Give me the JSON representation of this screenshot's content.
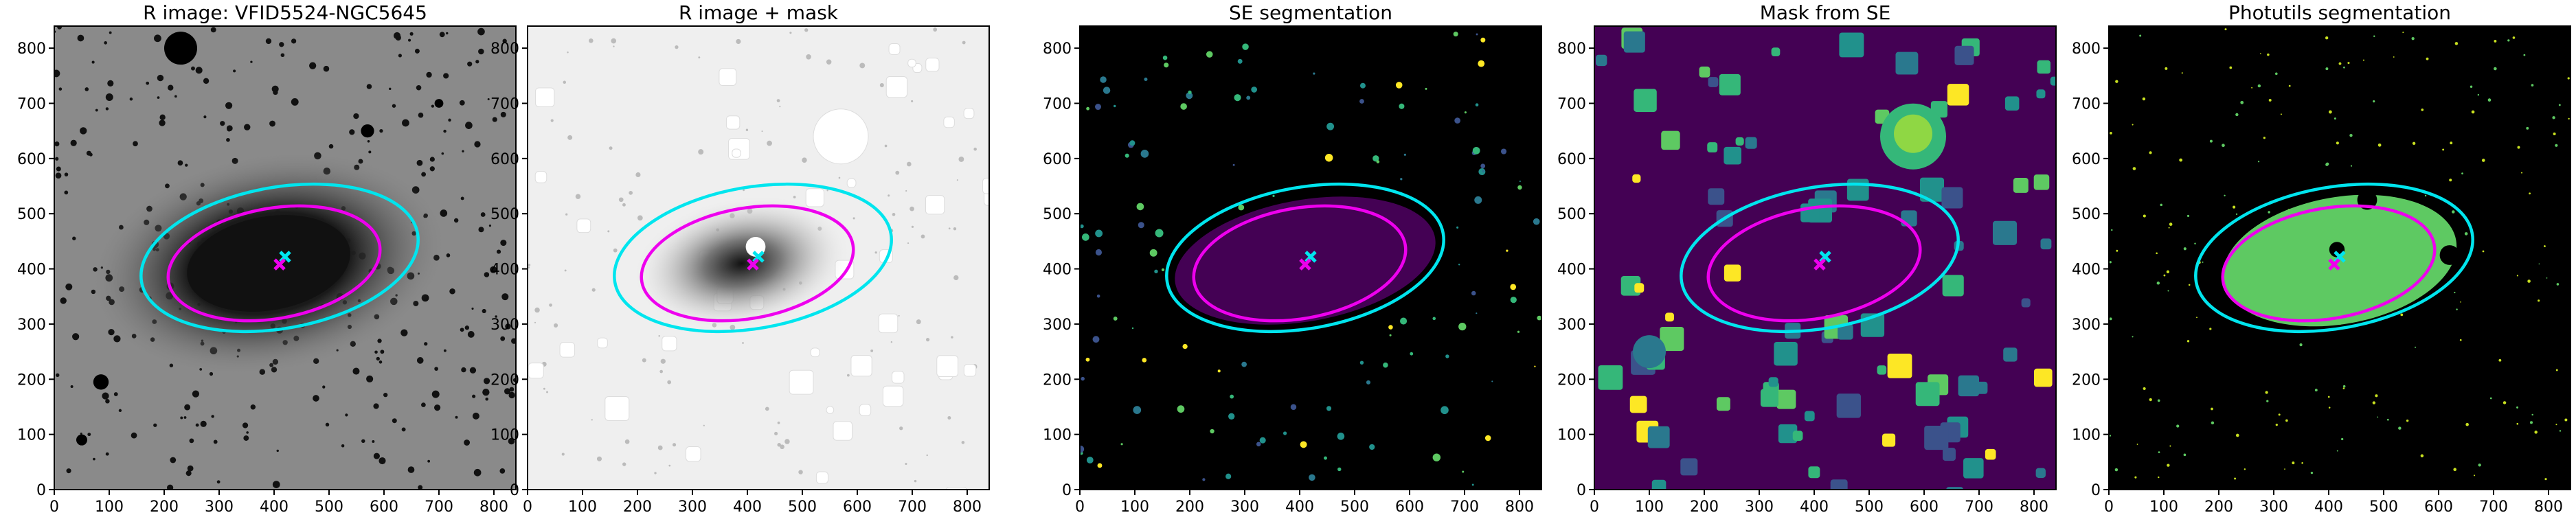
{
  "chart_data": [
    {
      "type": "image",
      "title": "R image: VFID5524-NGC5645",
      "xlim": [
        0,
        840
      ],
      "ylim": [
        0,
        840
      ],
      "xticks": [
        0,
        100,
        200,
        300,
        400,
        500,
        600,
        700,
        800
      ],
      "yticks": [
        0,
        100,
        200,
        300,
        400,
        500,
        600,
        700,
        800
      ],
      "ellipses": [
        {
          "color": "#00e5ee",
          "center": [
            410,
            420
          ],
          "a": 255,
          "b": 128,
          "angle": 10
        },
        {
          "color": "#ee00ee",
          "center": [
            400,
            410
          ],
          "a": 195,
          "b": 100,
          "angle": 10
        }
      ],
      "markers": [
        {
          "color": "#00e5ee",
          "x": 420,
          "y": 422
        },
        {
          "color": "#ee00ee",
          "x": 410,
          "y": 408
        }
      ]
    },
    {
      "type": "image",
      "title": "R image + mask",
      "xlim": [
        0,
        840
      ],
      "ylim": [
        0,
        840
      ],
      "xticks": [
        0,
        100,
        200,
        300,
        400,
        500,
        600,
        700,
        800
      ],
      "yticks": [
        0,
        100,
        200,
        300,
        400,
        500,
        600,
        700,
        800
      ],
      "ellipses": [
        {
          "color": "#00e5ee",
          "center": [
            410,
            420
          ],
          "a": 255,
          "b": 128,
          "angle": 10
        },
        {
          "color": "#ee00ee",
          "center": [
            400,
            410
          ],
          "a": 195,
          "b": 100,
          "angle": 10
        }
      ],
      "markers": [
        {
          "color": "#00e5ee",
          "x": 420,
          "y": 422
        },
        {
          "color": "#ee00ee",
          "x": 410,
          "y": 408
        }
      ]
    },
    {
      "type": "image",
      "title": "SE segmentation",
      "xlim": [
        0,
        840
      ],
      "ylim": [
        0,
        840
      ],
      "xticks": [
        0,
        100,
        200,
        300,
        400,
        500,
        600,
        700,
        800
      ],
      "yticks": [
        0,
        100,
        200,
        300,
        400,
        500,
        600,
        700,
        800
      ],
      "ellipses": [
        {
          "color": "#00e5ee",
          "center": [
            410,
            420
          ],
          "a": 255,
          "b": 128,
          "angle": 10
        },
        {
          "color": "#ee00ee",
          "center": [
            400,
            410
          ],
          "a": 195,
          "b": 100,
          "angle": 10
        }
      ],
      "markers": [
        {
          "color": "#00e5ee",
          "x": 420,
          "y": 422
        },
        {
          "color": "#ee00ee",
          "x": 410,
          "y": 408
        }
      ]
    },
    {
      "type": "image",
      "title": "Mask from SE",
      "xlim": [
        0,
        840
      ],
      "ylim": [
        0,
        840
      ],
      "xticks": [
        0,
        100,
        200,
        300,
        400,
        500,
        600,
        700,
        800
      ],
      "yticks": [
        0,
        100,
        200,
        300,
        400,
        500,
        600,
        700,
        800
      ],
      "ellipses": [
        {
          "color": "#00e5ee",
          "center": [
            410,
            420
          ],
          "a": 255,
          "b": 128,
          "angle": 10
        },
        {
          "color": "#ee00ee",
          "center": [
            400,
            410
          ],
          "a": 195,
          "b": 100,
          "angle": 10
        }
      ],
      "markers": [
        {
          "color": "#00e5ee",
          "x": 420,
          "y": 422
        },
        {
          "color": "#ee00ee",
          "x": 410,
          "y": 408
        }
      ]
    },
    {
      "type": "image",
      "title": "Photutils segmentation",
      "xlim": [
        0,
        840
      ],
      "ylim": [
        0,
        840
      ],
      "xticks": [
        0,
        100,
        200,
        300,
        400,
        500,
        600,
        700,
        800
      ],
      "yticks": [
        0,
        100,
        200,
        300,
        400,
        500,
        600,
        700,
        800
      ],
      "ellipses": [
        {
          "color": "#00e5ee",
          "center": [
            410,
            420
          ],
          "a": 255,
          "b": 128,
          "angle": 10
        },
        {
          "color": "#ee00ee",
          "center": [
            400,
            410
          ],
          "a": 195,
          "b": 100,
          "angle": 10
        }
      ],
      "markers": [
        {
          "color": "#00e5ee",
          "x": 420,
          "y": 422
        },
        {
          "color": "#ee00ee",
          "x": 410,
          "y": 408
        }
      ]
    }
  ]
}
